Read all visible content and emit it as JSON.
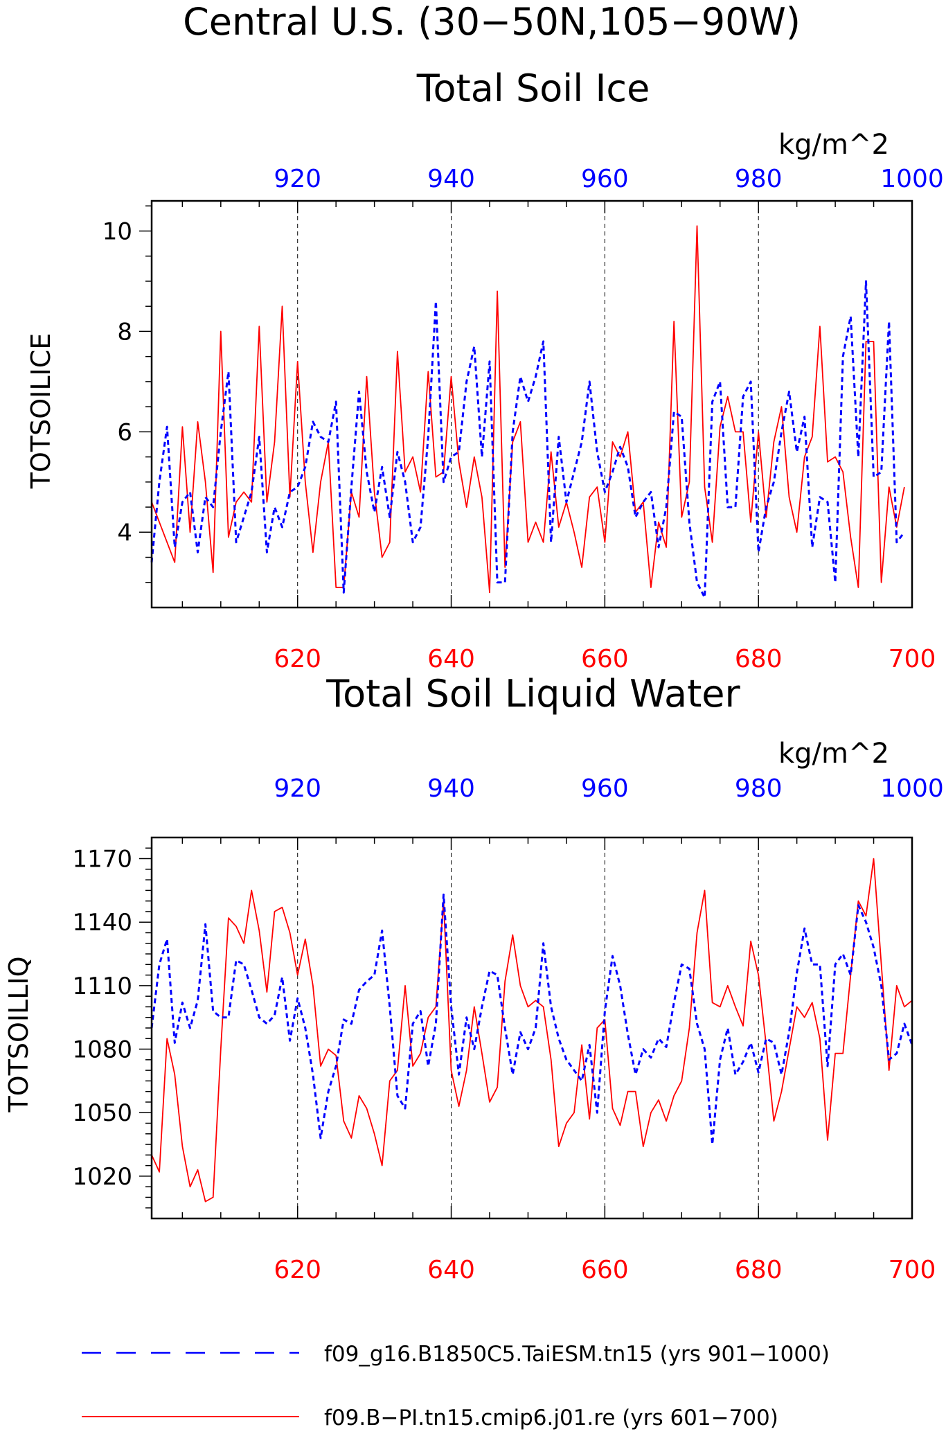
{
  "figure": {
    "title_line1": "Central U.S. (30−50N,105−90W)",
    "colors": {
      "red_series": "#ff0000",
      "blue_series": "#0000ff",
      "axes": "#000000"
    }
  },
  "legend": {
    "entries": [
      {
        "label": "f09_g16.B1850C5.TaiESM.tn15 (yrs 901−1000)",
        "color": "#0000ff",
        "style": "dashed"
      },
      {
        "label": "f09.B−PI.tn15.cmip6.j01.re (yrs 601−700)",
        "color": "#ff0000",
        "style": "solid"
      }
    ]
  },
  "chart_data": [
    {
      "type": "line",
      "title": "Total Soil Ice",
      "ylabel": "TOTSOILICE",
      "top_axis_unit": "kg/m^2",
      "bottom_xlim": [
        601,
        700
      ],
      "top_xlim": [
        901,
        1000
      ],
      "ylim": [
        2.5,
        10.6
      ],
      "yticks": [
        4,
        6,
        8,
        10
      ],
      "yminor": [
        3,
        3.5,
        4.5,
        5,
        5.5,
        6.5,
        7,
        7.5,
        8.5,
        9,
        9.5,
        10.5
      ],
      "xticks_bottom": [
        620,
        640,
        660,
        680,
        700
      ],
      "xticks_top": [
        920,
        940,
        960,
        980,
        1000
      ],
      "grid": "dashed vertical lines at major x ticks",
      "series": [
        {
          "name": "f09.B−PI.tn15.cmip6.j01.re (yrs 601−700)",
          "axis": "bottom",
          "style": "solid",
          "color": "#ff0000",
          "x_start": 601,
          "values": [
            4.6,
            4.2,
            3.8,
            3.4,
            6.1,
            4.0,
            6.2,
            5.0,
            3.2,
            8.0,
            3.9,
            4.6,
            4.8,
            4.6,
            8.1,
            4.6,
            5.8,
            8.5,
            4.7,
            7.4,
            5.0,
            3.6,
            5.0,
            5.8,
            2.9,
            2.9,
            4.8,
            4.3,
            7.1,
            4.8,
            3.5,
            3.8,
            7.6,
            5.2,
            5.5,
            4.8,
            7.2,
            5.1,
            5.2,
            7.1,
            5.4,
            4.5,
            5.5,
            4.7,
            2.8,
            8.8,
            3.3,
            5.8,
            6.2,
            3.8,
            4.2,
            3.8,
            5.6,
            4.1,
            4.6,
            4.0,
            3.3,
            4.7,
            4.9,
            3.8,
            5.8,
            5.5,
            6.0,
            4.4,
            4.6,
            2.9,
            4.2,
            3.7,
            8.2,
            4.3,
            5.0,
            10.1,
            4.9,
            3.8,
            6.1,
            6.7,
            6.0,
            6.0,
            4.2,
            6.0,
            4.3,
            5.8,
            6.5,
            4.7,
            4.0,
            5.5,
            5.9,
            8.1,
            5.4,
            5.5,
            5.2,
            3.9,
            2.9,
            7.8,
            7.8,
            3.0,
            4.9,
            4.1,
            4.9
          ]
        },
        {
          "name": "f09_g16.B1850C5.TaiESM.tn15 (yrs 901−1000)",
          "axis": "top",
          "style": "dashed",
          "color": "#0000ff",
          "x_start": 901,
          "values": [
            3.4,
            5.0,
            6.1,
            3.7,
            4.6,
            4.8,
            3.6,
            4.7,
            4.5,
            6.0,
            7.2,
            3.8,
            4.3,
            4.8,
            5.9,
            3.6,
            4.5,
            4.1,
            4.8,
            4.9,
            5.3,
            6.2,
            5.9,
            5.8,
            6.6,
            2.8,
            4.9,
            6.8,
            5.2,
            4.4,
            5.3,
            4.3,
            5.6,
            5.0,
            3.8,
            4.1,
            5.9,
            8.6,
            5.0,
            5.5,
            5.6,
            7.0,
            7.7,
            5.5,
            7.4,
            3.0,
            3.0,
            6.0,
            7.1,
            6.6,
            7.1,
            7.8,
            3.8,
            5.9,
            4.6,
            5.2,
            5.8,
            7.0,
            5.6,
            4.8,
            5.2,
            5.7,
            5.3,
            4.3,
            4.6,
            4.8,
            3.7,
            4.5,
            6.4,
            6.3,
            4.2,
            3.0,
            2.7,
            6.6,
            7.0,
            4.5,
            4.5,
            6.7,
            7.0,
            3.6,
            4.5,
            5.0,
            6.0,
            6.8,
            5.6,
            6.3,
            3.7,
            4.7,
            4.6,
            3.0,
            7.5,
            8.3,
            5.5,
            9.0,
            5.1,
            5.2,
            8.2,
            3.8,
            4.0
          ]
        }
      ]
    },
    {
      "type": "line",
      "title": "Total Soil Liquid Water",
      "ylabel": "TOTSOILLIQ",
      "top_axis_unit": "kg/m^2",
      "bottom_xlim": [
        601,
        700
      ],
      "top_xlim": [
        901,
        1000
      ],
      "ylim": [
        1000,
        1180
      ],
      "yticks": [
        1020,
        1050,
        1080,
        1110,
        1140,
        1170
      ],
      "yminor": [
        1005,
        1010,
        1015,
        1025,
        1030,
        1035,
        1040,
        1045,
        1055,
        1060,
        1065,
        1070,
        1075,
        1085,
        1090,
        1095,
        1100,
        1105,
        1115,
        1120,
        1125,
        1130,
        1135,
        1145,
        1150,
        1155,
        1160,
        1165,
        1175
      ],
      "xticks_bottom": [
        620,
        640,
        660,
        680,
        700
      ],
      "xticks_top": [
        920,
        940,
        960,
        980,
        1000
      ],
      "grid": "dashed vertical lines at major x ticks",
      "series": [
        {
          "name": "f09.B−PI.tn15.cmip6.j01.re (yrs 601−700)",
          "axis": "bottom",
          "style": "solid",
          "color": "#ff0000",
          "x_start": 601,
          "values": [
            1030,
            1022,
            1085,
            1068,
            1034,
            1015,
            1023,
            1008,
            1010,
            1080,
            1142,
            1138,
            1130,
            1155,
            1136,
            1107,
            1145,
            1147,
            1135,
            1115,
            1132,
            1110,
            1072,
            1080,
            1077,
            1046,
            1038,
            1058,
            1052,
            1040,
            1025,
            1065,
            1070,
            1110,
            1072,
            1078,
            1095,
            1100,
            1150,
            1070,
            1053,
            1070,
            1100,
            1078,
            1055,
            1062,
            1112,
            1134,
            1110,
            1100,
            1103,
            1100,
            1075,
            1034,
            1045,
            1050,
            1082,
            1047,
            1090,
            1094,
            1052,
            1044,
            1060,
            1060,
            1034,
            1050,
            1056,
            1046,
            1058,
            1065,
            1090,
            1135,
            1155,
            1102,
            1100,
            1110,
            1100,
            1091,
            1131,
            1115,
            1082,
            1046,
            1060,
            1080,
            1100,
            1095,
            1102,
            1085,
            1037,
            1078,
            1078,
            1115,
            1150,
            1143,
            1170,
            1120,
            1070,
            1110,
            1100,
            1103
          ]
        },
        {
          "name": "f09_g16.B1850C5.TaiESM.tn15 (yrs 901−1000)",
          "axis": "top",
          "style": "dashed",
          "color": "#0000ff",
          "x_start": 901,
          "values": [
            1090,
            1120,
            1132,
            1083,
            1102,
            1090,
            1103,
            1139,
            1098,
            1095,
            1095,
            1122,
            1120,
            1108,
            1095,
            1092,
            1096,
            1114,
            1084,
            1104,
            1090,
            1068,
            1038,
            1060,
            1072,
            1094,
            1092,
            1108,
            1112,
            1115,
            1136,
            1100,
            1058,
            1052,
            1092,
            1098,
            1072,
            1092,
            1153,
            1100,
            1068,
            1095,
            1080,
            1100,
            1117,
            1115,
            1090,
            1068,
            1088,
            1080,
            1090,
            1130,
            1100,
            1085,
            1075,
            1070,
            1065,
            1082,
            1050,
            1098,
            1124,
            1110,
            1087,
            1068,
            1080,
            1076,
            1085,
            1081,
            1102,
            1120,
            1118,
            1092,
            1080,
            1035,
            1075,
            1090,
            1068,
            1074,
            1083,
            1069,
            1085,
            1083,
            1068,
            1088,
            1116,
            1137,
            1120,
            1120,
            1072,
            1120,
            1125,
            1115,
            1148,
            1140,
            1128,
            1110,
            1075,
            1078,
            1092,
            1082
          ]
        }
      ]
    }
  ]
}
